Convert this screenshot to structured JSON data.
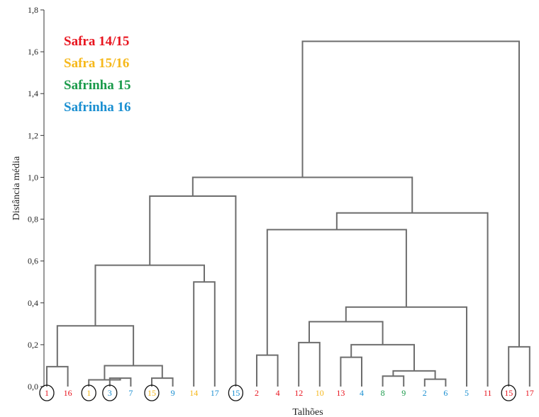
{
  "colors": {
    "safra_14_15": "#e8141e",
    "safra_15_16": "#f6b81a",
    "safrinha_15": "#1a9a4a",
    "safrinha_16": "#1a8fd1"
  },
  "chart_data": {
    "type": "dendrogram",
    "ylabel": "Distância média",
    "xlabel": "Talhões",
    "ylim": [
      0,
      1.8
    ],
    "y_ticks": [
      "0,0",
      "0,2",
      "0,4",
      "0,6",
      "0,8",
      "1,0",
      "1,2",
      "1,4",
      "1,6",
      "1,8"
    ],
    "legend": [
      {
        "label": "Safra 14/15",
        "group": "safra_14_15"
      },
      {
        "label": "Safra 15/16",
        "group": "safra_15_16"
      },
      {
        "label": "Safrinha 15",
        "group": "safrinha_15"
      },
      {
        "label": "Safrinha 16",
        "group": "safrinha_16"
      }
    ],
    "leaves": [
      {
        "label": "1",
        "group": "safra_14_15",
        "circled": true
      },
      {
        "label": "16",
        "group": "safra_14_15",
        "circled": false
      },
      {
        "label": "1",
        "group": "safra_15_16",
        "circled": true
      },
      {
        "label": "3",
        "group": "safrinha_16",
        "circled": true
      },
      {
        "label": "7",
        "group": "safrinha_16",
        "circled": false
      },
      {
        "label": "15",
        "group": "safra_15_16",
        "circled": true
      },
      {
        "label": "9",
        "group": "safrinha_16",
        "circled": false
      },
      {
        "label": "14",
        "group": "safra_15_16",
        "circled": false
      },
      {
        "label": "17",
        "group": "safrinha_16",
        "circled": false
      },
      {
        "label": "15",
        "group": "safrinha_16",
        "circled": true
      },
      {
        "label": "2",
        "group": "safra_14_15",
        "circled": false
      },
      {
        "label": "4",
        "group": "safra_14_15",
        "circled": false
      },
      {
        "label": "12",
        "group": "safra_14_15",
        "circled": false
      },
      {
        "label": "10",
        "group": "safra_15_16",
        "circled": false
      },
      {
        "label": "13",
        "group": "safra_14_15",
        "circled": false
      },
      {
        "label": "4",
        "group": "safrinha_16",
        "circled": false
      },
      {
        "label": "8",
        "group": "safrinha_15",
        "circled": false
      },
      {
        "label": "9",
        "group": "safrinha_15",
        "circled": false
      },
      {
        "label": "2",
        "group": "safrinha_16",
        "circled": false
      },
      {
        "label": "6",
        "group": "safrinha_16",
        "circled": false
      },
      {
        "label": "5",
        "group": "safrinha_16",
        "circled": false
      },
      {
        "label": "11",
        "group": "safra_14_15",
        "circled": false
      },
      {
        "label": "15",
        "group": "safra_14_15",
        "circled": true
      },
      {
        "label": "17",
        "group": "safra_14_15",
        "circled": false
      }
    ],
    "merges": [
      {
        "id": "A",
        "left": 0,
        "right": 1,
        "height": 0.095
      },
      {
        "id": "B",
        "left": 3,
        "right": 4,
        "height": 0.04
      },
      {
        "id": "C",
        "left": 2,
        "right": "B",
        "height": 0.032
      },
      {
        "id": "D",
        "left": 5,
        "right": 6,
        "height": 0.04
      },
      {
        "id": "E",
        "left": "C",
        "right": "D",
        "height": 0.1
      },
      {
        "id": "F",
        "left": "A",
        "right": "E",
        "height": 0.29
      },
      {
        "id": "G",
        "left": 7,
        "right": 8,
        "height": 0.5
      },
      {
        "id": "H",
        "left": "F",
        "right": "G",
        "height": 0.58
      },
      {
        "id": "I",
        "left": "H",
        "right": 9,
        "height": 0.91
      },
      {
        "id": "J",
        "left": 10,
        "right": 11,
        "height": 0.15
      },
      {
        "id": "K",
        "left": 12,
        "right": 13,
        "height": 0.21
      },
      {
        "id": "L",
        "left": 14,
        "right": 15,
        "height": 0.14
      },
      {
        "id": "M",
        "left": 16,
        "right": 17,
        "height": 0.05
      },
      {
        "id": "N",
        "left": 18,
        "right": 19,
        "height": 0.035
      },
      {
        "id": "O",
        "left": "M",
        "right": "N",
        "height": 0.075
      },
      {
        "id": "P",
        "left": "L",
        "right": "O",
        "height": 0.2
      },
      {
        "id": "Q",
        "left": "K",
        "right": "P",
        "height": 0.31
      },
      {
        "id": "R",
        "left": "Q",
        "right": 20,
        "height": 0.38
      },
      {
        "id": "S",
        "left": "J",
        "right": "R",
        "height": 0.75
      },
      {
        "id": "T",
        "left": "S",
        "right": 21,
        "height": 0.83
      },
      {
        "id": "U",
        "left": "I",
        "right": "T",
        "height": 1.0
      },
      {
        "id": "V",
        "left": 22,
        "right": 23,
        "height": 0.19
      },
      {
        "id": "W",
        "left": "U",
        "right": "V",
        "height": 1.65
      }
    ]
  }
}
